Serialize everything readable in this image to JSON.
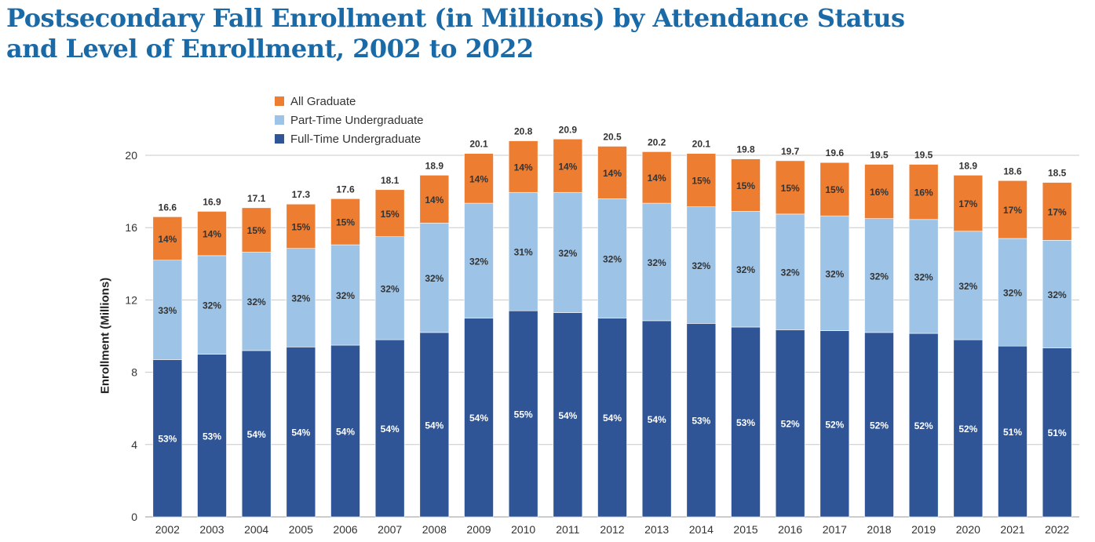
{
  "title": {
    "line1": "Postsecondary Fall Enrollment (in Millions) by Attendance Status",
    "line2": "and Level of Enrollment, 2002 to 2022"
  },
  "colors": {
    "full_time": "#2f5597",
    "part_time": "#9dc3e6",
    "graduate": "#ed7d31",
    "title": "#1a6aa8"
  },
  "chart_data": {
    "type": "bar",
    "stacked": true,
    "ylabel": "Enrollment (Millions)",
    "xlabel": "",
    "ylim": [
      0,
      20
    ],
    "yticks": [
      0,
      4,
      8,
      12,
      16,
      20
    ],
    "grid": true,
    "legend_position": "top-left",
    "categories": [
      "2002",
      "2003",
      "2004",
      "2005",
      "2006",
      "2007",
      "2008",
      "2009",
      "2010",
      "2011",
      "2012",
      "2013",
      "2014",
      "2015",
      "2016",
      "2017",
      "2018",
      "2019",
      "2020",
      "2021",
      "2022"
    ],
    "totals": [
      "16.6",
      "16.9",
      "17.1",
      "17.3",
      "17.6",
      "18.1",
      "18.9",
      "20.1",
      "20.8",
      "20.9",
      "20.5",
      "20.2",
      "20.1",
      "19.8",
      "19.7",
      "19.6",
      "19.5",
      "19.5",
      "18.9",
      "18.6",
      "18.5"
    ],
    "series": [
      {
        "name": "Full-Time Undergraduate",
        "values": [
          8.7,
          9.0,
          9.2,
          9.4,
          9.5,
          9.8,
          10.2,
          11.0,
          11.4,
          11.3,
          11.0,
          10.85,
          10.7,
          10.5,
          10.35,
          10.3,
          10.2,
          10.15,
          9.8,
          9.45,
          9.35
        ],
        "labels": [
          "53%",
          "53%",
          "54%",
          "54%",
          "54%",
          "54%",
          "54%",
          "54%",
          "55%",
          "54%",
          "54%",
          "54%",
          "53%",
          "53%",
          "52%",
          "52%",
          "52%",
          "52%",
          "52%",
          "51%",
          "51%"
        ]
      },
      {
        "name": "Part-Time Undergraduate",
        "values": [
          5.5,
          5.45,
          5.45,
          5.45,
          5.55,
          5.7,
          6.05,
          6.35,
          6.55,
          6.65,
          6.6,
          6.5,
          6.45,
          6.4,
          6.4,
          6.35,
          6.3,
          6.3,
          6.0,
          5.95,
          5.95
        ],
        "labels": [
          "33%",
          "32%",
          "32%",
          "32%",
          "32%",
          "32%",
          "32%",
          "32%",
          "31%",
          "32%",
          "32%",
          "32%",
          "32%",
          "32%",
          "32%",
          "32%",
          "32%",
          "32%",
          "32%",
          "32%",
          "32%"
        ]
      },
      {
        "name": "All Graduate",
        "values": [
          2.4,
          2.45,
          2.45,
          2.45,
          2.55,
          2.6,
          2.65,
          2.75,
          2.85,
          2.95,
          2.9,
          2.85,
          2.95,
          2.9,
          2.95,
          2.95,
          3.0,
          3.05,
          3.1,
          3.2,
          3.2
        ],
        "labels": [
          "14%",
          "14%",
          "15%",
          "15%",
          "15%",
          "15%",
          "14%",
          "14%",
          "14%",
          "14%",
          "14%",
          "14%",
          "15%",
          "15%",
          "15%",
          "15%",
          "16%",
          "16%",
          "17%",
          "17%",
          "17%"
        ]
      }
    ]
  },
  "legend": [
    {
      "label": "All Graduate",
      "color": "#ed7d31"
    },
    {
      "label": "Part-Time Undergraduate",
      "color": "#9dc3e6"
    },
    {
      "label": "Full-Time Undergraduate",
      "color": "#2f5597"
    }
  ]
}
